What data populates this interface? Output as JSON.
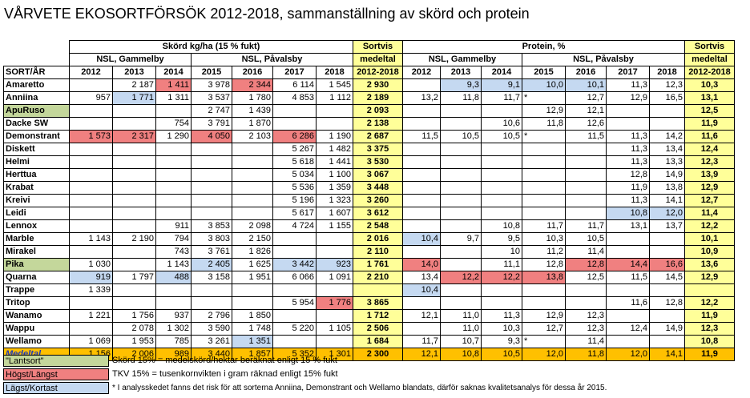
{
  "title": "VÅRVETE EKOSORTFÖRSÖK 2012-2018, sammanställning av skörd och protein",
  "headers": {
    "yield_group": "Skörd kg/ha (15 % fukt)",
    "protein_group": "Protein, %",
    "sortvis_l1": "Sortvis",
    "sortvis_l2": "medeltal",
    "sortvis_years": "2012-2018",
    "gammelby": "NSL, Gammelby",
    "pavalsby": "NSL, Påvalsby",
    "sort_ar": "SORT/ÅR",
    "years": [
      "2012",
      "2013",
      "2014",
      "2015",
      "2016",
      "2017",
      "2018"
    ]
  },
  "rows": [
    {
      "name": "Amaretto",
      "y": [
        "",
        "2 187",
        "1 411",
        "3 978",
        "2 344",
        "6 114",
        "1 545"
      ],
      "ym": "2 930",
      "p": [
        "",
        "9,3",
        "9,1",
        "10,0",
        "10,1",
        "11,3",
        "12,3"
      ],
      "pm": "10,3"
    },
    {
      "name": "Anniina",
      "y": [
        "957",
        "1 771",
        "1 311",
        "3 537",
        "1 780",
        "4 853",
        "1 112"
      ],
      "ym": "2 189",
      "p": [
        "13,2",
        "11,8",
        "11,7",
        "*",
        "12,7",
        "12,9",
        "16,5"
      ],
      "pm": "13,1"
    },
    {
      "name": "ApuRuso",
      "y": [
        "",
        "",
        "",
        "2 747",
        "1 439",
        "",
        ""
      ],
      "ym": "2 093",
      "p": [
        "",
        "",
        "",
        "12,9",
        "12,1",
        "",
        ""
      ],
      "pm": "12,5"
    },
    {
      "name": "Dacke SW",
      "y": [
        "",
        "",
        "754",
        "3 791",
        "1 870",
        "",
        ""
      ],
      "ym": "2 138",
      "p": [
        "",
        "",
        "10,6",
        "11,8",
        "12,6",
        "",
        ""
      ],
      "pm": "11,9"
    },
    {
      "name": "Demonstrant",
      "y": [
        "1 573",
        "2 317",
        "1 290",
        "4 050",
        "2 103",
        "6 286",
        "1 190"
      ],
      "ym": "2 687",
      "p": [
        "11,5",
        "10,5",
        "10,5",
        "*",
        "11,5",
        "11,3",
        "14,2"
      ],
      "pm": "11,6"
    },
    {
      "name": "Diskett",
      "y": [
        "",
        "",
        "",
        "",
        "",
        "5 267",
        "1 482"
      ],
      "ym": "3 375",
      "p": [
        "",
        "",
        "",
        "",
        "",
        "11,3",
        "13,4"
      ],
      "pm": "12,4"
    },
    {
      "name": "Helmi",
      "y": [
        "",
        "",
        "",
        "",
        "",
        "5 618",
        "1 441"
      ],
      "ym": "3 530",
      "p": [
        "",
        "",
        "",
        "",
        "",
        "11,3",
        "13,3"
      ],
      "pm": "12,3"
    },
    {
      "name": "Herttua",
      "y": [
        "",
        "",
        "",
        "",
        "",
        "5 034",
        "1 100"
      ],
      "ym": "3 067",
      "p": [
        "",
        "",
        "",
        "",
        "",
        "12,8",
        "14,9"
      ],
      "pm": "13,9"
    },
    {
      "name": "Krabat",
      "y": [
        "",
        "",
        "",
        "",
        "",
        "5 536",
        "1 359"
      ],
      "ym": "3 448",
      "p": [
        "",
        "",
        "",
        "",
        "",
        "11,9",
        "13,8"
      ],
      "pm": "12,9"
    },
    {
      "name": "Kreivi",
      "y": [
        "",
        "",
        "",
        "",
        "",
        "5 196",
        "1 323"
      ],
      "ym": "3 260",
      "p": [
        "",
        "",
        "",
        "",
        "",
        "11,3",
        "14,1"
      ],
      "pm": "12,7"
    },
    {
      "name": "Leidi",
      "y": [
        "",
        "",
        "",
        "",
        "",
        "5 617",
        "1 607"
      ],
      "ym": "3 612",
      "p": [
        "",
        "",
        "",
        "",
        "",
        "10,8",
        "12,0"
      ],
      "pm": "11,4"
    },
    {
      "name": "Lennox",
      "y": [
        "",
        "",
        "911",
        "3 853",
        "2 098",
        "4 724",
        "1 155"
      ],
      "ym": "2 548",
      "p": [
        "",
        "",
        "10,8",
        "11,7",
        "11,7",
        "13,1",
        "13,7"
      ],
      "pm": "12,2"
    },
    {
      "name": "Marble",
      "y": [
        "1 143",
        "2 190",
        "794",
        "3 803",
        "2 150",
        "",
        ""
      ],
      "ym": "2 016",
      "p": [
        "10,4",
        "9,7",
        "9,5",
        "10,3",
        "10,5",
        "",
        ""
      ],
      "pm": "10,1"
    },
    {
      "name": "Mirakel",
      "y": [
        "",
        "",
        "743",
        "3 761",
        "1 826",
        "",
        ""
      ],
      "ym": "2 110",
      "p": [
        "",
        "",
        "10",
        "11,2",
        "11,4",
        "",
        ""
      ],
      "pm": "10,9"
    },
    {
      "name": "Pika",
      "y": [
        "1 030",
        "",
        "1 143",
        "2 405",
        "1 625",
        "3 442",
        "923"
      ],
      "ym": "1 761",
      "p": [
        "14,0",
        "",
        "11,1",
        "12,8",
        "12,8",
        "14,4",
        "16,6"
      ],
      "pm": "13,6"
    },
    {
      "name": "Quarna",
      "y": [
        "919",
        "1 797",
        "488",
        "3 158",
        "1 951",
        "6 066",
        "1 091"
      ],
      "ym": "2 210",
      "p": [
        "13,4",
        "12,2",
        "12,2",
        "13,8",
        "12,5",
        "11,5",
        "14,5"
      ],
      "pm": "12,9"
    },
    {
      "name": "Trappe",
      "y": [
        "1 339",
        "",
        "",
        "",
        "",
        "",
        ""
      ],
      "ym": "",
      "p": [
        "10,4",
        "",
        "",
        "",
        "",
        "",
        ""
      ],
      "pm": ""
    },
    {
      "name": "Tritop",
      "y": [
        "",
        "",
        "",
        "",
        "",
        "5 954",
        "1 776"
      ],
      "ym": "3 865",
      "p": [
        "",
        "",
        "",
        "",
        "",
        "11,6",
        "12,8"
      ],
      "pm": "12,2"
    },
    {
      "name": "Wanamo",
      "y": [
        "1 221",
        "1 756",
        "937",
        "2 796",
        "1 850",
        "",
        ""
      ],
      "ym": "1 712",
      "p": [
        "12,1",
        "11,0",
        "11,3",
        "12,9",
        "12,3",
        "",
        ""
      ],
      "pm": "11,9"
    },
    {
      "name": "Wappu",
      "y": [
        "",
        "2 078",
        "1 302",
        "3 590",
        "1 748",
        "5 220",
        "1 105"
      ],
      "ym": "2 506",
      "p": [
        "",
        "11,0",
        "10,3",
        "12,7",
        "12,3",
        "12,4",
        "14,9"
      ],
      "pm": "12,3"
    },
    {
      "name": "Wellamo",
      "y": [
        "1 069",
        "1 953",
        "785",
        "3 261",
        "1 351",
        "",
        ""
      ],
      "ym": "1 684",
      "p": [
        "11,7",
        "10,7",
        "9,3",
        "*",
        "11,4",
        "",
        ""
      ],
      "pm": "10,8"
    }
  ],
  "average": {
    "name": "Medeltal",
    "y": [
      "1 156",
      "2 006",
      "989",
      "3 440",
      "1 857",
      "5 352",
      "1 301"
    ],
    "ym": "2 300",
    "p": [
      "12,1",
      "10,8",
      "10,5",
      "12,0",
      "11,8",
      "12,0",
      "14,1"
    ],
    "pm": "11,9"
  },
  "highlights": {
    "Amaretto": {
      "y": {
        "2": "h",
        "4": "h"
      },
      "p": {
        "1": "l",
        "2": "l",
        "3": "l",
        "4": "l"
      },
      "pm": "l"
    },
    "Anniina": {
      "y": {
        "1": "l"
      }
    },
    "ApuRuso": {
      "name": "gr"
    },
    "Demonstrant": {
      "y": {
        "0": "h",
        "1": "h",
        "3": "h",
        "5": "h"
      }
    },
    "Herttua": {
      "pm": "h"
    },
    "Leidi": {
      "p": {
        "5": "l",
        "6": "l"
      }
    },
    "Marble": {
      "p": {
        "0": "l"
      },
      "pm": "l"
    },
    "Pika": {
      "name": "gr",
      "y": {
        "3": "l",
        "5": "l",
        "6": "l"
      },
      "ym": "l",
      "p": {
        "0": "h",
        "4": "h",
        "5": "h",
        "6": "h"
      }
    },
    "Quarna": {
      "y": {
        "0": "l",
        "2": "l"
      },
      "p": {
        "1": "h",
        "2": "h",
        "3": "h"
      }
    },
    "Trappe": {
      "p": {
        "0": "l"
      }
    },
    "Tritop": {
      "y": {
        "6": "h"
      },
      "ym": "h"
    },
    "Wanamo": {
      "ym": "l"
    },
    "Wellamo": {
      "y": {
        "4": "l"
      },
      "ym": "l"
    }
  },
  "legend": {
    "items": [
      {
        "label": "\"Lantsort\"",
        "color": "#c4d79b"
      },
      {
        "label": "Högst/Längst",
        "color": "#f08080"
      },
      {
        "label": "Lägst/Kortast",
        "color": "#c5d9f1"
      }
    ],
    "notes": [
      "Skörd 15% = medelskörd/hektar beräknat enligt 15 % fukt",
      "TKV 15% = tusenkornvikten i gram räknad enligt 15% fukt",
      "* I analysskedet fanns det risk för att sorterna Anniina, Demonstrant och Wellamo blandats, därför saknas kvalitetsanalys för dessa år 2015."
    ]
  }
}
